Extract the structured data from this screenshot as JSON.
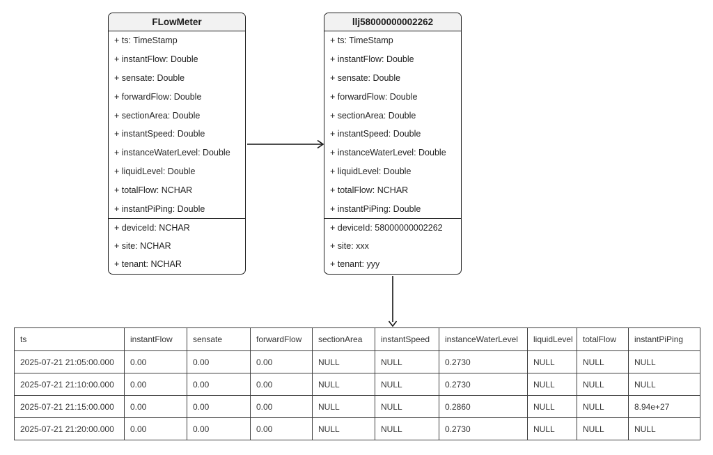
{
  "diagram": {
    "classes": [
      {
        "title": "FLowMeter",
        "attributes": [
          "+ ts: TimeStamp",
          "+ instantFlow: Double",
          "+ sensate: Double",
          "+ forwardFlow: Double",
          "+ sectionArea: Double",
          "+ instantSpeed: Double",
          "+ instanceWaterLevel: Double",
          "+ liquidLevel: Double",
          "+ totalFlow: NCHAR",
          "+ instantPiPing: Double"
        ],
        "members": [
          "+ deviceId: NCHAR",
          "+ site: NCHAR",
          "+ tenant: NCHAR"
        ]
      },
      {
        "title": "llj58000000002262",
        "attributes": [
          "+ ts: TimeStamp",
          "+ instantFlow: Double",
          "+ sensate: Double",
          "+ forwardFlow: Double",
          "+ sectionArea: Double",
          "+ instantSpeed: Double",
          "+ instanceWaterLevel: Double",
          "+ liquidLevel: Double",
          "+ totalFlow: NCHAR",
          "+ instantPiPing: Double"
        ],
        "members": [
          "+ deviceId: 58000000002262",
          "+ site: xxx",
          "+ tenant: yyy"
        ]
      }
    ],
    "relations": [
      {
        "from": "FLowMeter",
        "to": "llj58000000002262"
      },
      {
        "from": "llj58000000002262",
        "to": "result-table"
      }
    ]
  },
  "table": {
    "columns": [
      "ts",
      "instantFlow",
      "sensate",
      "forwardFlow",
      "sectionArea",
      "instantSpeed",
      "instanceWaterLevel",
      "liquidLevel",
      "totalFlow",
      "instantPiPing"
    ],
    "rows": [
      [
        "2025-07-21 21:05:00.000",
        "0.00",
        "0.00",
        "0.00",
        "NULL",
        "NULL",
        "0.2730",
        "NULL",
        "NULL",
        "NULL"
      ],
      [
        "2025-07-21 21:10:00.000",
        "0.00",
        "0.00",
        "0.00",
        "NULL",
        "NULL",
        "0.2730",
        "NULL",
        "NULL",
        "NULL"
      ],
      [
        "2025-07-21 21:15:00.000",
        "0.00",
        "0.00",
        "0.00",
        "NULL",
        "NULL",
        "0.2860",
        "NULL",
        "NULL",
        "8.94e+27"
      ],
      [
        "2025-07-21 21:20:00.000",
        "0.00",
        "0.00",
        "0.00",
        "NULL",
        "NULL",
        "0.2730",
        "NULL",
        "NULL",
        "NULL"
      ]
    ]
  },
  "colors": {
    "border": "#1b1b1b",
    "class_title_bg": "#f2f2f2",
    "table_border": "#3c3c3c",
    "text": "#202020",
    "table_text": "#333333"
  }
}
